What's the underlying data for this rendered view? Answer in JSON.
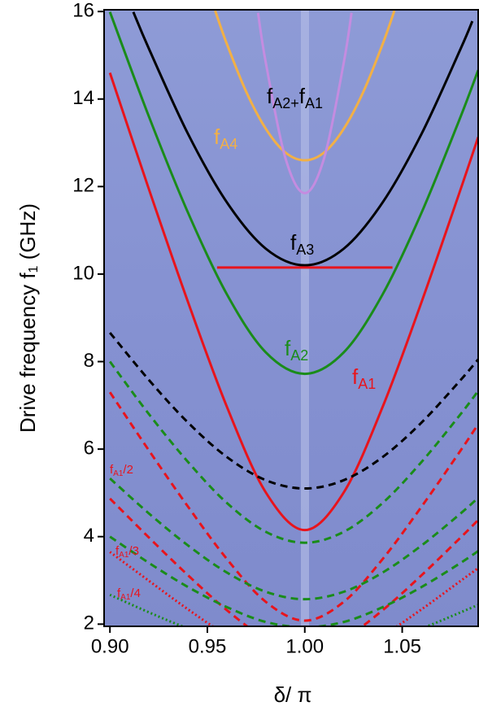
{
  "chart_data": {
    "type": "line",
    "xlabel": "δ/ π",
    "ylabel": [
      "Drive frequency f",
      "1",
      " (GHz)"
    ],
    "xlim": [
      0.897,
      1.089
    ],
    "ylim": [
      1.95,
      16.04
    ],
    "xticks": [
      {
        "value": 0.9,
        "label": "0.90"
      },
      0.95,
      {
        "value": 1.0,
        "label": "1.00"
      },
      1.05
    ],
    "yticks": [
      2,
      4,
      6,
      8,
      10,
      12,
      14,
      16
    ],
    "series": [
      {
        "color": "#e8141c",
        "style": "solid",
        "x": [
          0.9,
          0.92,
          0.94,
          0.96,
          0.98,
          1.0,
          1.02,
          1.04,
          1.06,
          1.08,
          1.089
        ],
        "values": [
          14.6,
          11.94,
          9.37,
          6.97,
          5.01,
          4.15,
          5.01,
          6.97,
          9.37,
          11.94,
          13.13
        ]
      },
      {
        "color": "#1a8c1a",
        "style": "solid",
        "x": [
          0.9,
          0.92,
          0.94,
          0.96,
          0.98,
          1.0,
          1.02,
          1.04,
          1.06,
          1.08,
          1.089
        ],
        "values": [
          15.99,
          13.6,
          11.41,
          9.54,
          8.21,
          7.72,
          8.21,
          9.54,
          11.41,
          13.6,
          14.66
        ]
      },
      {
        "color": "#000000",
        "style": "solid",
        "x": [
          0.912,
          0.92,
          0.94,
          0.96,
          0.98,
          1.0,
          1.02,
          1.04,
          1.06,
          1.08,
          1.086
        ],
        "values": [
          15.99,
          15.15,
          13.21,
          11.64,
          10.58,
          10.2,
          10.58,
          11.64,
          13.21,
          15.15,
          15.78
        ]
      },
      {
        "color": "#f2b046",
        "style": "solid",
        "x": [
          0.954,
          0.96,
          0.97,
          0.98,
          0.99,
          1.0,
          1.01,
          1.02,
          1.03,
          1.04,
          1.046
        ],
        "values": [
          16.02,
          15.26,
          14.16,
          13.32,
          12.78,
          12.6,
          12.78,
          13.32,
          14.16,
          15.26,
          16.02
        ]
      },
      {
        "color": "#c48ce0",
        "style": "solid",
        "x": [
          0.976,
          0.98,
          0.99,
          1.0,
          1.01,
          1.02,
          1.024
        ],
        "values": [
          15.97,
          14.83,
          12.66,
          11.85,
          12.66,
          14.83,
          15.97
        ]
      },
      {
        "color": "#e8141c",
        "style": "solid",
        "x": [
          0.955,
          1.045
        ],
        "values": [
          10.15,
          10.15
        ]
      },
      {
        "color": "#000000",
        "style": "dashed",
        "x": [
          0.9,
          0.92,
          0.94,
          0.96,
          0.98,
          1.0,
          1.02,
          1.04,
          1.06,
          1.08,
          1.089
        ],
        "values": [
          8.66,
          7.58,
          6.61,
          5.82,
          5.29,
          5.1,
          5.29,
          5.82,
          6.61,
          7.58,
          8.05
        ]
      },
      {
        "color": "#1a8c1a",
        "style": "dashed",
        "x": [
          0.9,
          0.92,
          0.94,
          0.96,
          0.98,
          1.0,
          1.02,
          1.04,
          1.06,
          1.08,
          1.089
        ],
        "values": [
          8.0,
          6.8,
          5.71,
          4.77,
          4.11,
          3.86,
          4.11,
          4.77,
          5.71,
          6.8,
          7.33
        ]
      },
      {
        "color": "#e8141c",
        "style": "dashed",
        "x": [
          0.9,
          0.92,
          0.94,
          0.96,
          0.98,
          1.0,
          1.02,
          1.04,
          1.06,
          1.08,
          1.089
        ],
        "values": [
          7.3,
          5.97,
          4.69,
          3.49,
          2.51,
          2.08,
          2.51,
          3.49,
          4.69,
          5.97,
          6.57
        ]
      },
      {
        "color": "#1a8c1a",
        "style": "dashed",
        "x": [
          0.9,
          0.92,
          0.94,
          0.96,
          0.98,
          1.0,
          1.02,
          1.04,
          1.06,
          1.08,
          1.089
        ],
        "values": [
          5.33,
          4.53,
          3.8,
          3.18,
          2.74,
          2.57,
          2.74,
          3.18,
          3.8,
          4.53,
          4.89
        ]
      },
      {
        "color": "#e8141c",
        "style": "dashed",
        "x": [
          0.9,
          0.92,
          0.94,
          0.96,
          0.98,
          1.0,
          1.02,
          1.04,
          1.06,
          1.08,
          1.089
        ],
        "values": [
          4.87,
          3.98,
          3.12,
          2.32,
          1.67,
          1.38,
          1.67,
          2.32,
          3.12,
          3.98,
          4.38
        ]
      },
      {
        "color": "#1a8c1a",
        "style": "dashed",
        "x": [
          0.9,
          0.92,
          0.94,
          0.96,
          0.98,
          1.0,
          1.02,
          1.04,
          1.06,
          1.08,
          1.089
        ],
        "values": [
          4.0,
          3.4,
          2.85,
          2.39,
          2.05,
          1.93,
          2.05,
          2.39,
          2.85,
          3.4,
          3.67
        ]
      },
      {
        "color": "#e8141c",
        "style": "dotted",
        "x": [
          0.9,
          0.92,
          0.94,
          0.96,
          0.98,
          1.0,
          1.02,
          1.04,
          1.06,
          1.08,
          1.089
        ],
        "values": [
          3.65,
          2.99,
          2.34,
          1.74,
          1.25,
          1.04,
          1.25,
          1.74,
          2.34,
          2.99,
          3.28
        ]
      },
      {
        "color": "#1a8c1a",
        "style": "dotted",
        "x": [
          0.9,
          0.92,
          0.94,
          0.96,
          0.98,
          1.0,
          1.02,
          1.04,
          1.06,
          1.08,
          1.089
        ],
        "values": [
          2.67,
          2.27,
          1.9,
          1.59,
          1.37,
          1.29,
          1.37,
          1.59,
          1.9,
          2.27,
          2.44
        ]
      }
    ],
    "annotations": [
      {
        "parts": [
          "f",
          "A2+",
          "f",
          "A1"
        ],
        "color": "#000000"
      },
      {
        "parts": [
          "f",
          "A4"
        ],
        "color": "#f2b046"
      },
      {
        "parts": [
          "f",
          "A3"
        ],
        "color": "#000000"
      },
      {
        "parts": [
          "f",
          "A2"
        ],
        "color": "#1a8c1a"
      },
      {
        "parts": [
          "f",
          "A1"
        ],
        "color": "#e8141c"
      },
      {
        "parts": [
          "f",
          "A1",
          "/2"
        ],
        "color": "#e8141c"
      },
      {
        "parts": [
          "f",
          "A1",
          "/3"
        ],
        "color": "#e8141c"
      },
      {
        "parts": [
          "f",
          "A1",
          "/4"
        ],
        "color": "#e8141c"
      }
    ]
  }
}
